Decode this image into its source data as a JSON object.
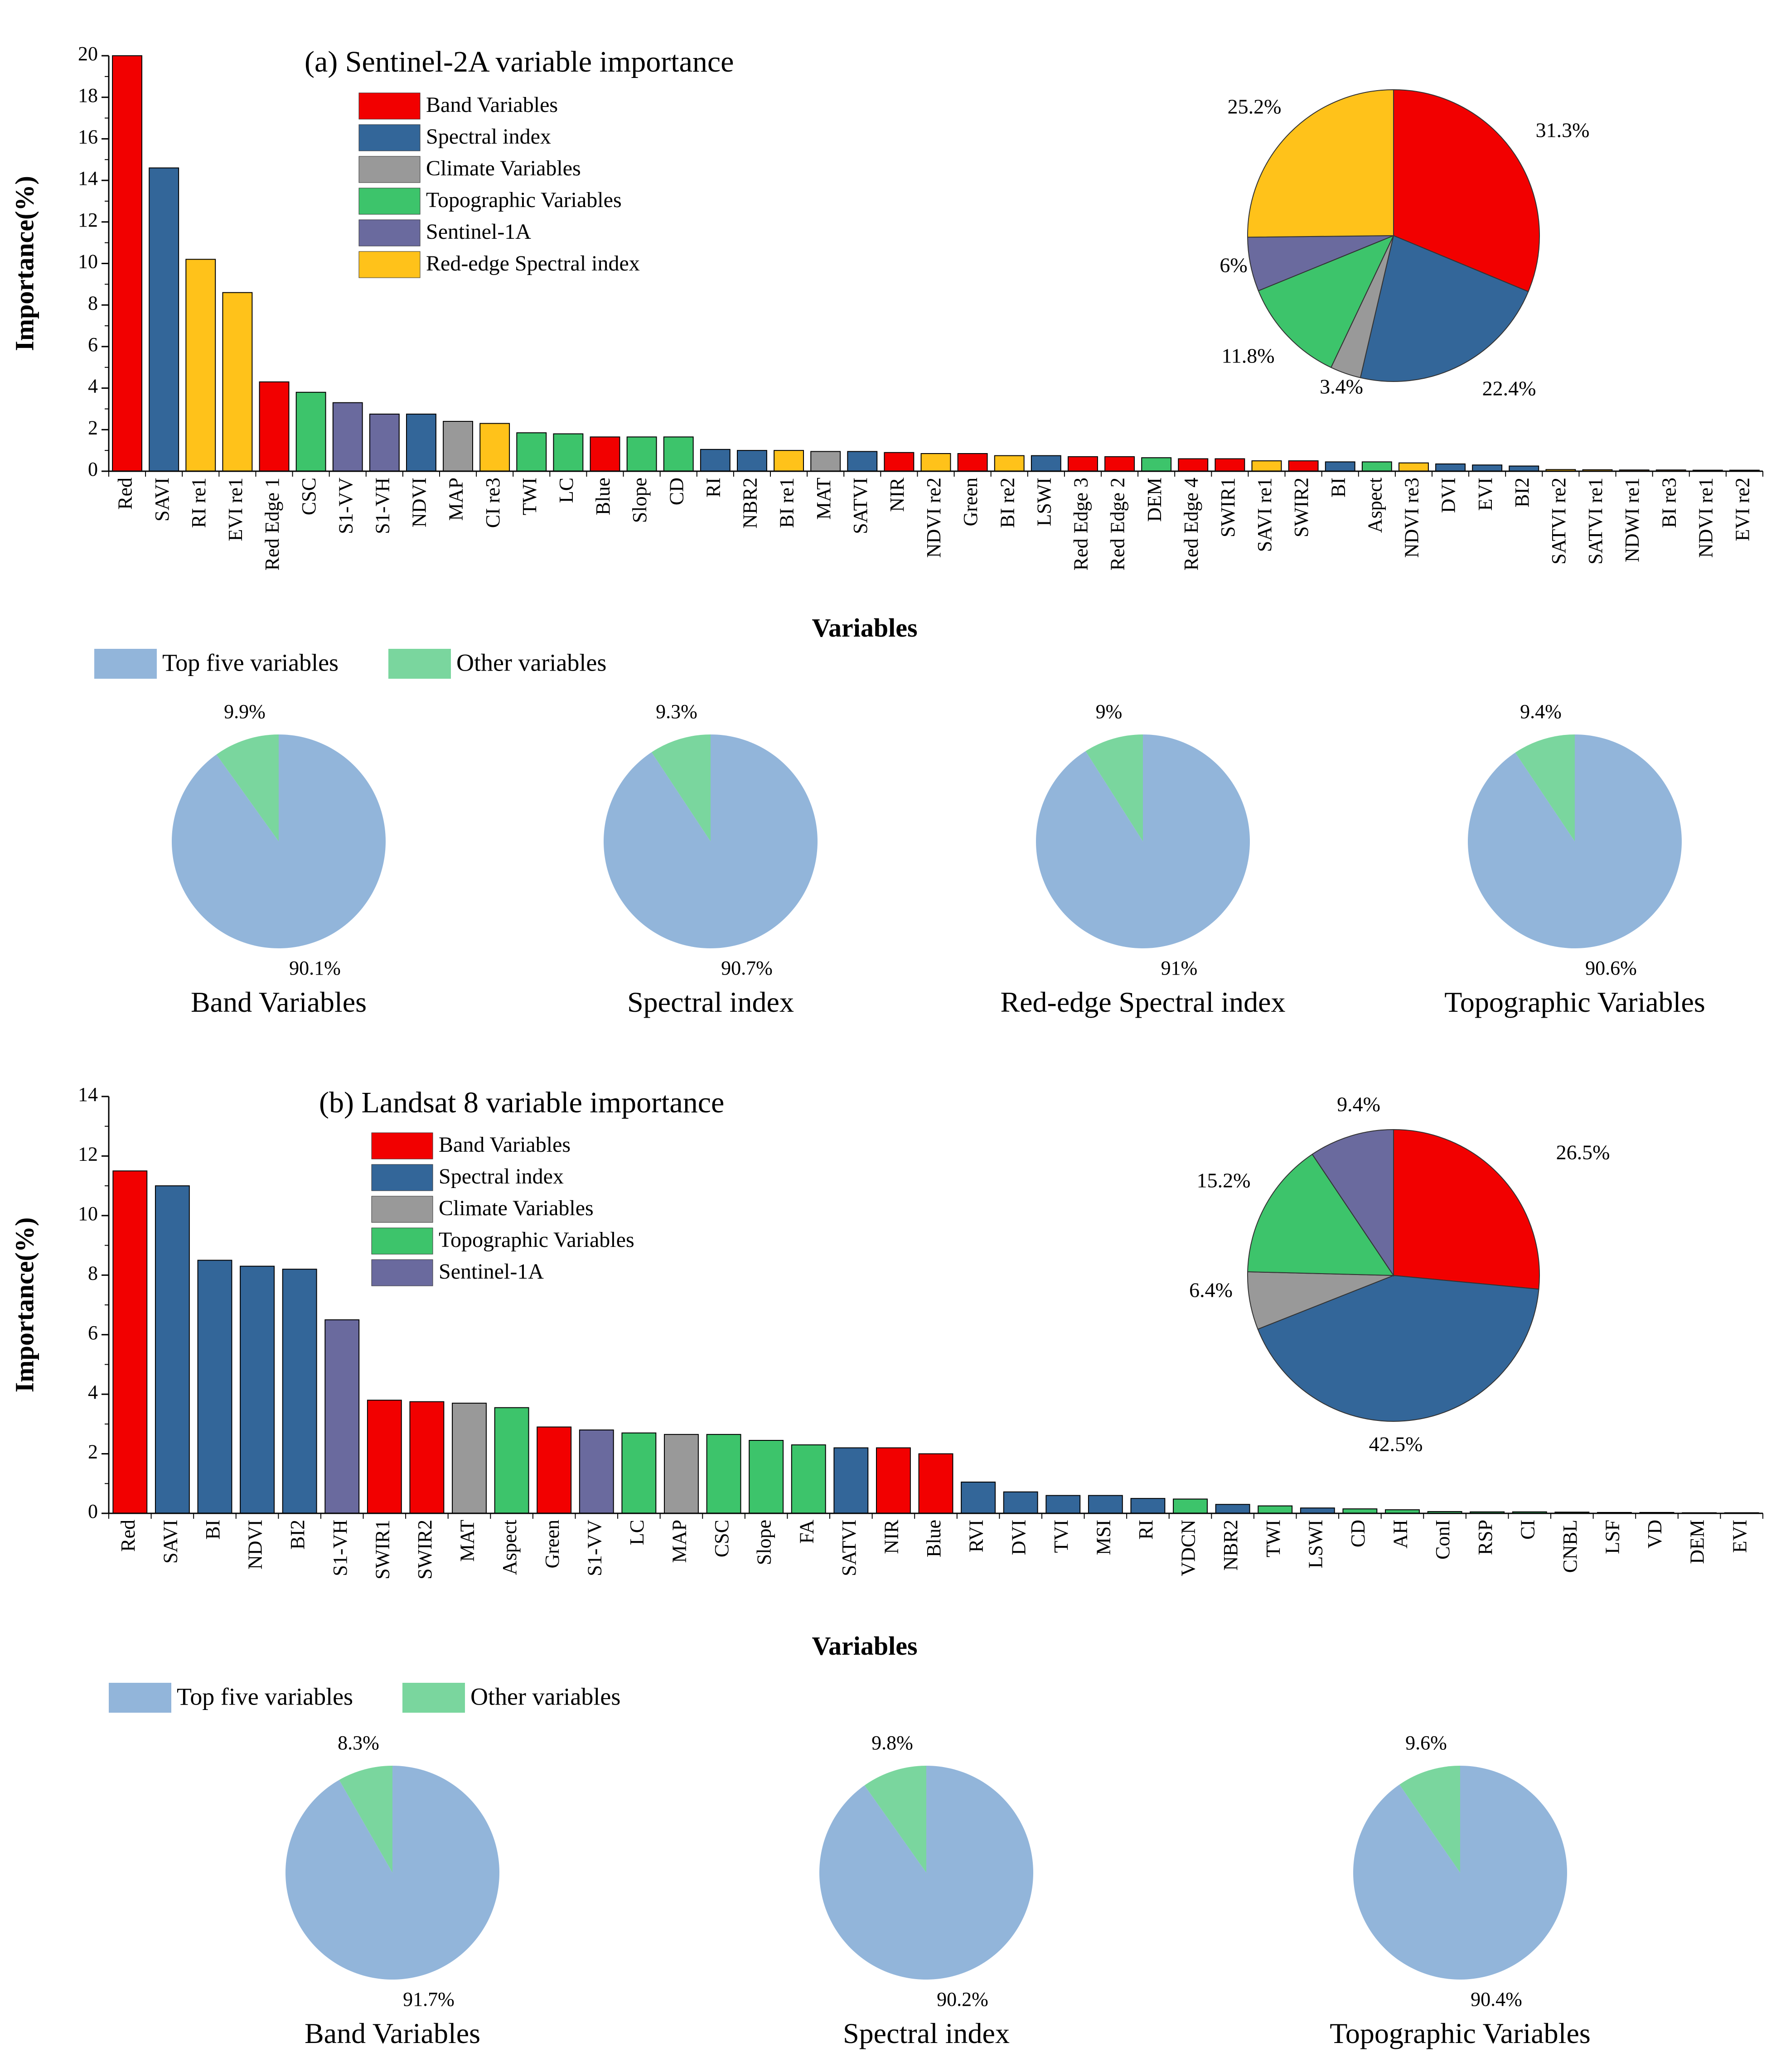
{
  "colors": {
    "band": "#f20000",
    "spectral": "#336699",
    "climate": "#999999",
    "topographic": "#3dc46b",
    "sentinel1": "#6a6a9e",
    "rededge": "#ffc21a",
    "top5": "#92b5da",
    "other": "#7ad69e"
  },
  "chart_data": [
    {
      "id": "s2_bar",
      "type": "bar",
      "title": "(a) Sentinel-2A variable importance",
      "xlabel": "Variables",
      "ylabel": "Importance(%)",
      "ylim": [
        0,
        20
      ],
      "yticks": [
        "0",
        "2",
        "4",
        "6",
        "8",
        "10",
        "12",
        "14",
        "16",
        "18",
        "20"
      ],
      "legend": [
        {
          "label": "Band Variables",
          "group": "band"
        },
        {
          "label": "Spectral index",
          "group": "spectral"
        },
        {
          "label": "Climate Variables",
          "group": "climate"
        },
        {
          "label": "Topographic Variables",
          "group": "topographic"
        },
        {
          "label": "Sentinel-1A",
          "group": "sentinel1"
        },
        {
          "label": "Red-edge Spectral index",
          "group": "rededge"
        }
      ],
      "categories": [
        "Red",
        "SAVI",
        "RI re1",
        "EVI re1",
        "Red Edge 1",
        "CSC",
        "S1-VV",
        "S1-VH",
        "NDVI",
        "MAP",
        "CI re3",
        "TWI",
        "LC",
        "Blue",
        "Slope",
        "CD",
        "RI",
        "NBR2",
        "BI re1",
        "MAT",
        "SATVI",
        "NIR",
        "NDVI re2",
        "Green",
        "BI re2",
        "LSWI",
        "Red Edge 3",
        "Red Edge 2",
        "DEM",
        "Red Edge 4",
        "SWIR1",
        "SAVI re1",
        "SWIR2",
        "BI",
        "Aspect",
        "NDVI re3",
        "DVI",
        "EVI",
        "BI2",
        "SATVI re2",
        "SATVI re1",
        "NDWI re1",
        "BI re3",
        "NDVI re1",
        "EVI re2"
      ],
      "values": [
        20.0,
        14.6,
        10.2,
        8.6,
        4.3,
        3.8,
        3.3,
        2.75,
        2.75,
        2.4,
        2.3,
        1.85,
        1.8,
        1.65,
        1.65,
        1.65,
        1.05,
        1.0,
        1.0,
        0.95,
        0.95,
        0.9,
        0.85,
        0.85,
        0.75,
        0.75,
        0.7,
        0.7,
        0.65,
        0.6,
        0.6,
        0.5,
        0.5,
        0.45,
        0.45,
        0.4,
        0.35,
        0.3,
        0.25,
        0.08,
        0.07,
        0.06,
        0.06,
        0.05,
        0.05
      ],
      "groups": [
        "band",
        "spectral",
        "rededge",
        "rededge",
        "band",
        "topographic",
        "sentinel1",
        "sentinel1",
        "spectral",
        "climate",
        "rededge",
        "topographic",
        "topographic",
        "band",
        "topographic",
        "topographic",
        "spectral",
        "spectral",
        "rededge",
        "climate",
        "spectral",
        "band",
        "rededge",
        "band",
        "rededge",
        "spectral",
        "band",
        "band",
        "topographic",
        "band",
        "band",
        "rededge",
        "band",
        "spectral",
        "topographic",
        "rededge",
        "spectral",
        "spectral",
        "spectral",
        "rededge",
        "rededge",
        "rededge",
        "rededge",
        "rededge",
        "rededge"
      ]
    },
    {
      "id": "s2_pie",
      "type": "pie",
      "labels": [
        "31.3%",
        "22.4%",
        "3.4%",
        "11.8%",
        "6%",
        "25.2%"
      ],
      "values": [
        31.3,
        22.4,
        3.4,
        11.8,
        6.0,
        25.2
      ],
      "groups": [
        "band",
        "spectral",
        "climate",
        "topographic",
        "sentinel1",
        "rededge"
      ]
    },
    {
      "id": "s2_small",
      "type": "pie",
      "legend": [
        "Top five variables",
        "Other variables"
      ],
      "pies": [
        {
          "title": "Band Variables",
          "top5": 90.1,
          "other": 9.9,
          "top5_label": "90.1%",
          "other_label": "9.9%"
        },
        {
          "title": "Spectral index",
          "top5": 90.7,
          "other": 9.3,
          "top5_label": "90.7%",
          "other_label": "9.3%"
        },
        {
          "title": "Red-edge Spectral index",
          "top5": 91,
          "other": 9,
          "top5_label": "91%",
          "other_label": "9%"
        },
        {
          "title": "Topographic Variables",
          "top5": 90.6,
          "other": 9.4,
          "top5_label": "90.6%",
          "other_label": "9.4%"
        }
      ]
    },
    {
      "id": "l8_bar",
      "type": "bar",
      "title": "(b) Landsat 8  variable importance",
      "xlabel": "Variables",
      "ylabel": "Importance(%)",
      "ylim": [
        0,
        14
      ],
      "yticks": [
        "0",
        "2",
        "4",
        "6",
        "8",
        "10",
        "12",
        "14"
      ],
      "legend": [
        {
          "label": "Band Variables",
          "group": "band"
        },
        {
          "label": "Spectral index",
          "group": "spectral"
        },
        {
          "label": "Climate Variables",
          "group": "climate"
        },
        {
          "label": "Topographic Variables",
          "group": "topographic"
        },
        {
          "label": "Sentinel-1A",
          "group": "sentinel1"
        }
      ],
      "categories": [
        "Red",
        "SAVI",
        "BI",
        "NDVI",
        "BI2",
        "S1-VH",
        "SWIR1",
        "SWIR2",
        "MAT",
        "Aspect",
        "Green",
        "S1-VV",
        "LC",
        "MAP",
        "CSC",
        "Slope",
        "FA",
        "SATVI",
        "NIR",
        "Blue",
        "RVI",
        "DVI",
        "TVI",
        "MSI",
        "RI",
        "VDCN",
        "NBR2",
        "TWI",
        "LSWI",
        "CD",
        "AH",
        "ConI",
        "RSP",
        "CI",
        "CNBL",
        "LSF",
        "VD",
        "DEM",
        "EVI"
      ],
      "values": [
        11.5,
        11.0,
        8.5,
        8.3,
        8.2,
        6.5,
        3.8,
        3.75,
        3.7,
        3.55,
        2.9,
        2.8,
        2.7,
        2.65,
        2.65,
        2.45,
        2.3,
        2.2,
        2.2,
        2.0,
        1.05,
        0.72,
        0.6,
        0.6,
        0.5,
        0.48,
        0.3,
        0.25,
        0.18,
        0.15,
        0.12,
        0.06,
        0.05,
        0.05,
        0.04,
        0.03,
        0.03,
        0.02,
        0.02
      ],
      "groups": [
        "band",
        "spectral",
        "spectral",
        "spectral",
        "spectral",
        "sentinel1",
        "band",
        "band",
        "climate",
        "topographic",
        "band",
        "sentinel1",
        "topographic",
        "climate",
        "topographic",
        "topographic",
        "topographic",
        "spectral",
        "band",
        "band",
        "spectral",
        "spectral",
        "spectral",
        "spectral",
        "spectral",
        "topographic",
        "spectral",
        "topographic",
        "spectral",
        "topographic",
        "topographic",
        "topographic",
        "topographic",
        "topographic",
        "topographic",
        "topographic",
        "topographic",
        "topographic",
        "spectral"
      ]
    },
    {
      "id": "l8_pie",
      "type": "pie",
      "labels": [
        "26.5%",
        "42.5%",
        "6.4%",
        "15.2%",
        "9.4%"
      ],
      "values": [
        26.5,
        42.5,
        6.4,
        15.2,
        9.4
      ],
      "groups": [
        "band",
        "spectral",
        "climate",
        "topographic",
        "sentinel1"
      ]
    },
    {
      "id": "l8_small",
      "type": "pie",
      "legend": [
        "Top five variables",
        "Other variables"
      ],
      "pies": [
        {
          "title": "Band Variables",
          "top5": 91.7,
          "other": 8.3,
          "top5_label": "91.7%",
          "other_label": "8.3%"
        },
        {
          "title": "Spectral index",
          "top5": 90.2,
          "other": 9.8,
          "top5_label": "90.2%",
          "other_label": "9.8%"
        },
        {
          "title": "Topographic Variables",
          "top5": 90.4,
          "other": 9.6,
          "top5_label": "90.4%",
          "other_label": "9.6%"
        }
      ]
    }
  ]
}
